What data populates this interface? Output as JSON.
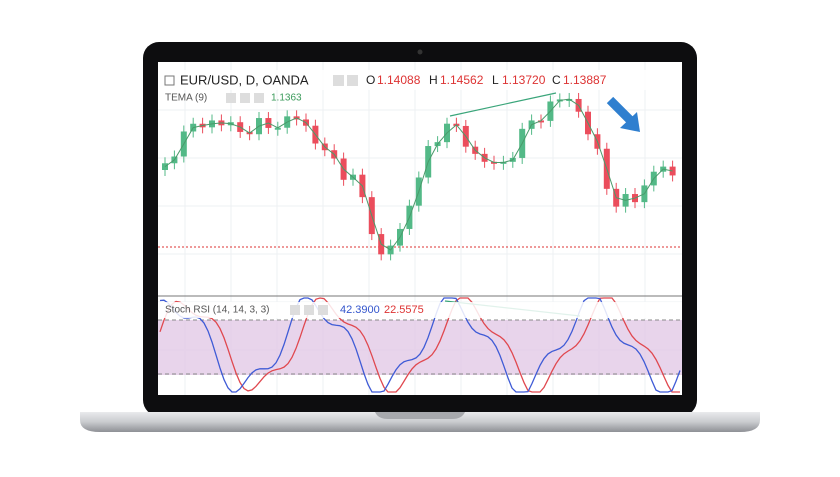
{
  "header": {
    "symbol": "EUR/USD, D, OANDA",
    "open_label": "O",
    "open": "1.14088",
    "high_label": "H",
    "high": "1.14562",
    "low_label": "L",
    "low": "1.13720",
    "close_label": "C",
    "close": "1.13887"
  },
  "tema": {
    "label": "TEMA (9)",
    "value": "1.1363"
  },
  "stoch_rsi": {
    "label": "Stoch RSI (14, 14, 3, 3)",
    "k": "42.3900",
    "d": "22.5575"
  }
}
